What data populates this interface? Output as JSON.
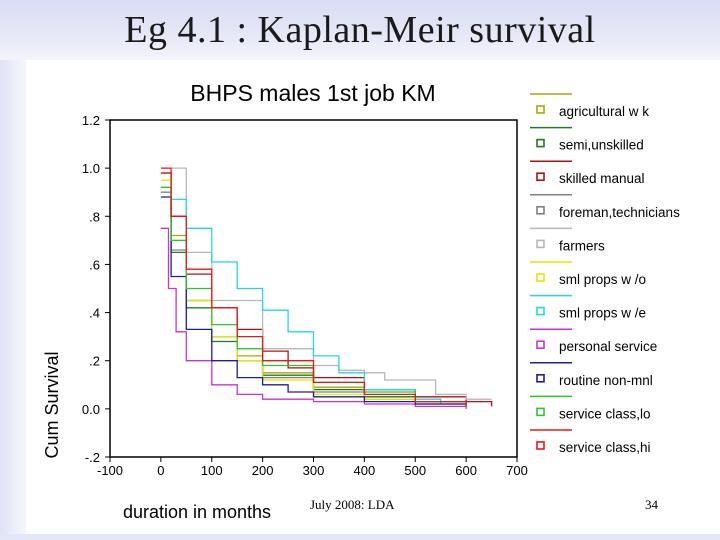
{
  "slide": {
    "title": "Eg 4.1 : Kaplan-Meir survival",
    "footer": "July 2008: LDA",
    "page_number": "34"
  },
  "chart_data": {
    "type": "line",
    "title": "BHPS males 1st job KM",
    "xlabel": "duration in months",
    "ylabel": "Cum Survival",
    "xlim": [
      -100,
      700
    ],
    "ylim": [
      -0.2,
      1.2
    ],
    "x_ticks": [
      "-100",
      "0",
      "100",
      "200",
      "300",
      "400",
      "500",
      "600",
      "700"
    ],
    "y_ticks": [
      "1.2",
      "1.0",
      ".8",
      ".6",
      ".4",
      ".2",
      "0.0",
      "-.2"
    ],
    "grid": false,
    "legend_position": "right",
    "series": [
      {
        "name": "agricultural w k",
        "color": "#a8a800",
        "x": [
          0,
          20,
          50,
          100,
          150,
          200,
          300,
          400,
          500,
          600
        ],
        "y": [
          0.98,
          0.72,
          0.45,
          0.3,
          0.22,
          0.15,
          0.09,
          0.05,
          0.03,
          0.01
        ]
      },
      {
        "name": "semi,unskilled",
        "color": "#1e7e1e",
        "x": [
          0,
          20,
          50,
          100,
          150,
          200,
          300,
          400,
          500,
          600
        ],
        "y": [
          0.92,
          0.65,
          0.42,
          0.28,
          0.2,
          0.14,
          0.08,
          0.05,
          0.03,
          0.02
        ]
      },
      {
        "name": "skilled manual",
        "color": "#b01010",
        "x": [
          0,
          20,
          50,
          100,
          150,
          200,
          250,
          300,
          400,
          500,
          600,
          650
        ],
        "y": [
          0.98,
          0.8,
          0.56,
          0.42,
          0.33,
          0.24,
          0.17,
          0.13,
          0.08,
          0.05,
          0.03,
          0.01
        ]
      },
      {
        "name": "foreman,technicians",
        "color": "#808080",
        "x": [
          0,
          20,
          50,
          100,
          150,
          200,
          300,
          400,
          500,
          600
        ],
        "y": [
          0.9,
          0.66,
          0.45,
          0.3,
          0.2,
          0.13,
          0.07,
          0.04,
          0.02,
          0.01
        ]
      },
      {
        "name": "farmers",
        "color": "#b8b8b8",
        "x": [
          0,
          50,
          100,
          200,
          300,
          350,
          400,
          440,
          540,
          600,
          650
        ],
        "y": [
          1.0,
          0.65,
          0.45,
          0.25,
          0.18,
          0.16,
          0.15,
          0.12,
          0.06,
          0.04,
          0.04
        ]
      },
      {
        "name": "sml props w /o",
        "color": "#e6e600",
        "x": [
          0,
          20,
          50,
          100,
          150,
          200,
          300,
          400,
          500,
          600
        ],
        "y": [
          0.95,
          0.7,
          0.45,
          0.3,
          0.2,
          0.12,
          0.06,
          0.04,
          0.02,
          0.01
        ]
      },
      {
        "name": "sml props w /e",
        "color": "#22d8e8",
        "x": [
          0,
          20,
          50,
          100,
          150,
          200,
          250,
          300,
          350,
          400,
          500,
          550
        ],
        "y": [
          0.92,
          0.87,
          0.75,
          0.61,
          0.5,
          0.41,
          0.32,
          0.22,
          0.15,
          0.08,
          0.04,
          0.02
        ]
      },
      {
        "name": "personal service",
        "color": "#cc33cc",
        "x": [
          0,
          15,
          30,
          50,
          100,
          150,
          200,
          300,
          400,
          500,
          600
        ],
        "y": [
          0.75,
          0.5,
          0.32,
          0.2,
          0.1,
          0.06,
          0.04,
          0.03,
          0.02,
          0.01,
          0.0
        ]
      },
      {
        "name": "routine non-mnl",
        "color": "#1c1ca8",
        "x": [
          0,
          20,
          50,
          100,
          150,
          200,
          250,
          300,
          400,
          500,
          600
        ],
        "y": [
          0.88,
          0.55,
          0.33,
          0.2,
          0.13,
          0.1,
          0.07,
          0.05,
          0.03,
          0.02,
          0.01
        ]
      },
      {
        "name": "service class,lo",
        "color": "#2cc72c",
        "x": [
          0,
          20,
          50,
          100,
          150,
          200,
          300,
          400,
          500,
          600
        ],
        "y": [
          0.92,
          0.7,
          0.5,
          0.35,
          0.25,
          0.18,
          0.11,
          0.07,
          0.03,
          0.01
        ]
      },
      {
        "name": "service class,hi",
        "color": "#e81818",
        "x": [
          0,
          20,
          50,
          100,
          150,
          200,
          300,
          400,
          500,
          600
        ],
        "y": [
          1.0,
          0.8,
          0.58,
          0.42,
          0.3,
          0.2,
          0.11,
          0.06,
          0.03,
          0.01
        ]
      }
    ]
  }
}
